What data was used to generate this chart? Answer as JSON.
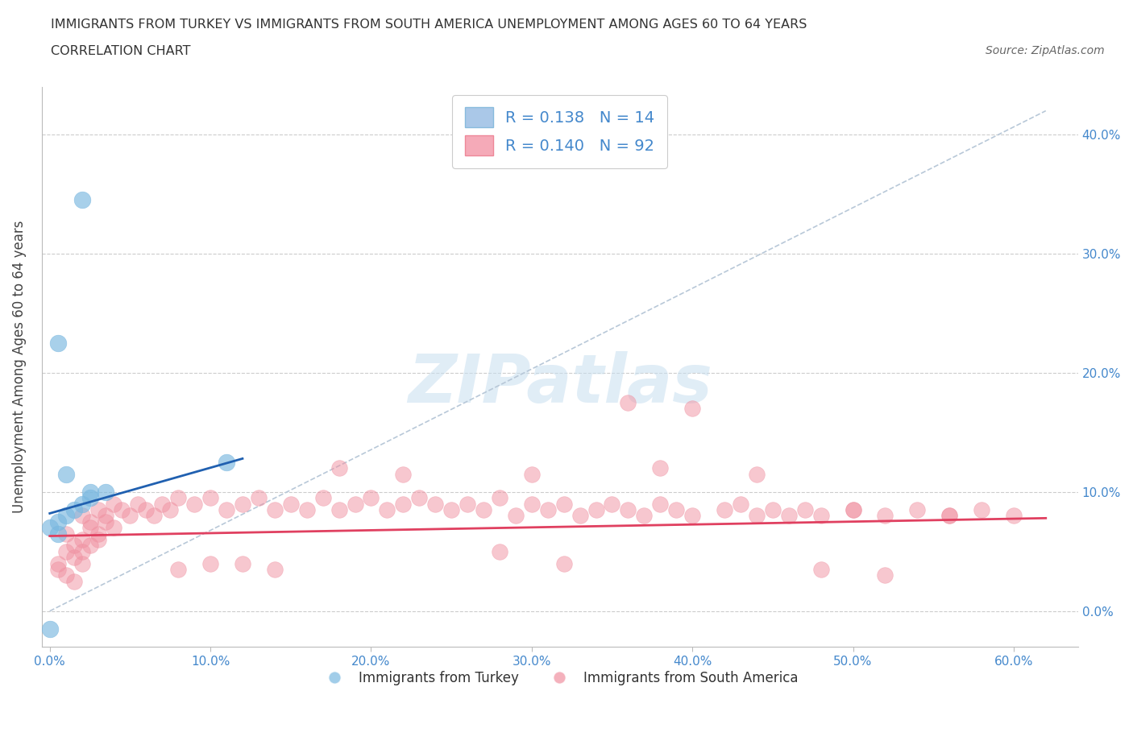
{
  "title_line1": "IMMIGRANTS FROM TURKEY VS IMMIGRANTS FROM SOUTH AMERICA UNEMPLOYMENT AMONG AGES 60 TO 64 YEARS",
  "title_line2": "CORRELATION CHART",
  "source": "Source: ZipAtlas.com",
  "ylabel": "Unemployment Among Ages 60 to 64 years",
  "xlabel_ticks": [
    "0.0%",
    "10.0%",
    "20.0%",
    "30.0%",
    "40.0%",
    "50.0%",
    "60.0%"
  ],
  "xlabel_vals": [
    0.0,
    0.1,
    0.2,
    0.3,
    0.4,
    0.5,
    0.6
  ],
  "ylabel_ticks_left": [
    ""
  ],
  "ylabel_ticks_right": [
    "0.0%",
    "10.0%",
    "20.0%",
    "30.0%",
    "40.0%"
  ],
  "ylabel_vals": [
    0.0,
    0.1,
    0.2,
    0.3,
    0.4
  ],
  "xlim": [
    -0.005,
    0.64
  ],
  "ylim": [
    -0.03,
    0.44
  ],
  "legend_r1": "R = 0.138   N = 14",
  "legend_r2": "R = 0.140   N = 92",
  "legend_color1": "#aac8e8",
  "legend_color2": "#f5aab8",
  "turkey_color": "#7ab8e0",
  "sa_color": "#f090a0",
  "turkey_line_color": "#2060b0",
  "sa_line_color": "#e04060",
  "ref_line_color": "#b8c8d8",
  "tick_color": "#4488cc",
  "turkey_x": [
    0.02,
    0.005,
    0.01,
    0.015,
    0.02,
    0.025,
    0.01,
    0.025,
    0.035,
    0.005,
    0.0,
    0.11,
    0.0,
    0.005
  ],
  "turkey_y": [
    0.345,
    0.075,
    0.08,
    0.085,
    0.09,
    0.1,
    0.115,
    0.095,
    0.1,
    0.225,
    -0.015,
    0.125,
    0.07,
    0.065
  ],
  "sa_x": [
    0.005,
    0.01,
    0.015,
    0.02,
    0.005,
    0.01,
    0.015,
    0.02,
    0.025,
    0.03,
    0.01,
    0.015,
    0.02,
    0.025,
    0.03,
    0.035,
    0.04,
    0.02,
    0.025,
    0.03,
    0.035,
    0.04,
    0.045,
    0.05,
    0.055,
    0.06,
    0.065,
    0.07,
    0.075,
    0.08,
    0.09,
    0.1,
    0.11,
    0.12,
    0.13,
    0.14,
    0.15,
    0.16,
    0.17,
    0.18,
    0.19,
    0.2,
    0.21,
    0.22,
    0.23,
    0.24,
    0.25,
    0.26,
    0.27,
    0.28,
    0.29,
    0.3,
    0.31,
    0.32,
    0.33,
    0.34,
    0.35,
    0.36,
    0.37,
    0.38,
    0.39,
    0.4,
    0.42,
    0.43,
    0.44,
    0.45,
    0.46,
    0.47,
    0.48,
    0.5,
    0.52,
    0.54,
    0.56,
    0.58,
    0.6,
    0.36,
    0.4,
    0.18,
    0.22,
    0.3,
    0.38,
    0.44,
    0.5,
    0.56,
    0.1,
    0.14,
    0.08,
    0.12,
    0.28,
    0.32,
    0.48,
    0.52
  ],
  "sa_y": [
    0.04,
    0.05,
    0.045,
    0.06,
    0.035,
    0.03,
    0.025,
    0.05,
    0.055,
    0.06,
    0.065,
    0.055,
    0.04,
    0.07,
    0.065,
    0.075,
    0.07,
    0.08,
    0.075,
    0.085,
    0.08,
    0.09,
    0.085,
    0.08,
    0.09,
    0.085,
    0.08,
    0.09,
    0.085,
    0.095,
    0.09,
    0.095,
    0.085,
    0.09,
    0.095,
    0.085,
    0.09,
    0.085,
    0.095,
    0.085,
    0.09,
    0.095,
    0.085,
    0.09,
    0.095,
    0.09,
    0.085,
    0.09,
    0.085,
    0.095,
    0.08,
    0.09,
    0.085,
    0.09,
    0.08,
    0.085,
    0.09,
    0.085,
    0.08,
    0.09,
    0.085,
    0.08,
    0.085,
    0.09,
    0.08,
    0.085,
    0.08,
    0.085,
    0.08,
    0.085,
    0.08,
    0.085,
    0.08,
    0.085,
    0.08,
    0.175,
    0.17,
    0.12,
    0.115,
    0.115,
    0.12,
    0.115,
    0.085,
    0.08,
    0.04,
    0.035,
    0.035,
    0.04,
    0.05,
    0.04,
    0.035,
    0.03
  ],
  "turkey_line_x": [
    0.0,
    0.12
  ],
  "turkey_line_y": [
    0.082,
    0.128
  ],
  "sa_line_x": [
    0.0,
    0.62
  ],
  "sa_line_y": [
    0.063,
    0.078
  ],
  "ref_line_x": [
    0.0,
    0.62
  ],
  "ref_line_y": [
    0.0,
    0.42
  ]
}
